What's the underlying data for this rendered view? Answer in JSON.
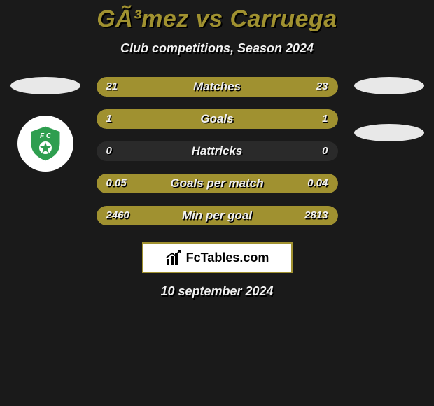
{
  "title": "GÃ³mez vs Carruega",
  "subtitle": "Club competitions, Season 2024",
  "date": "10 september 2024",
  "footer_brand": "FcTables.com",
  "colors": {
    "accent": "#a09130",
    "bg": "#1a1a1a",
    "text": "#f0f0f0",
    "badge_bg": "#ffffff",
    "club_green": "#2e9e4f"
  },
  "left": {
    "has_profile_oval": true,
    "has_club_badge": true
  },
  "right": {
    "has_profile_oval": true,
    "has_club_badge": false,
    "second_oval": true
  },
  "stats": [
    {
      "label": "Matches",
      "left_val": "21",
      "right_val": "23",
      "left_fill_pct": 48,
      "right_fill_pct": 52
    },
    {
      "label": "Goals",
      "left_val": "1",
      "right_val": "1",
      "left_fill_pct": 50,
      "right_fill_pct": 50
    },
    {
      "label": "Hattricks",
      "left_val": "0",
      "right_val": "0",
      "left_fill_pct": 0,
      "right_fill_pct": 0
    },
    {
      "label": "Goals per match",
      "left_val": "0.05",
      "right_val": "0.04",
      "left_fill_pct": 55,
      "right_fill_pct": 45
    },
    {
      "label": "Min per goal",
      "left_val": "2460",
      "right_val": "2813",
      "left_fill_pct": 47,
      "right_fill_pct": 53
    }
  ]
}
